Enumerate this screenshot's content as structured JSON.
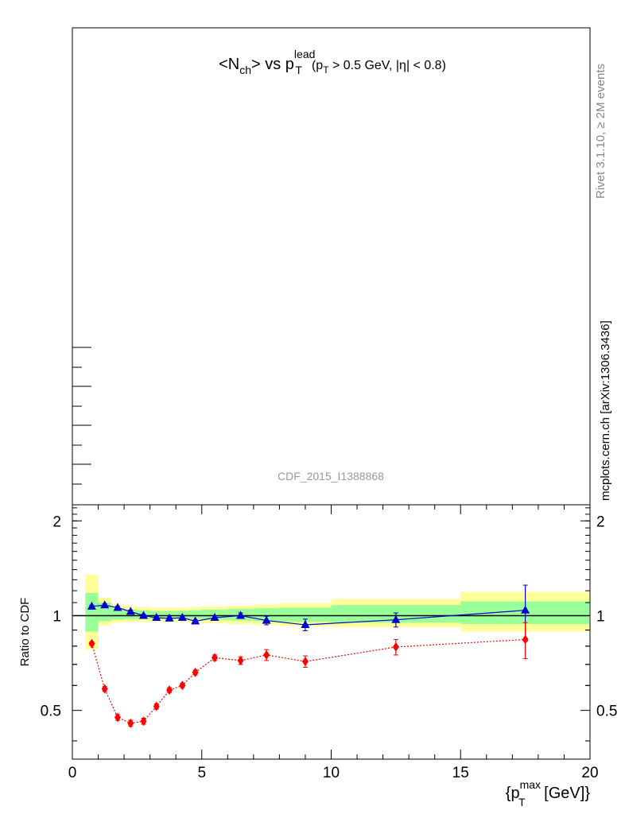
{
  "chart_data": {
    "type": "scatter",
    "title": {
      "text_prefix": "<N",
      "n_sub": "ch",
      "vs": "> vs p",
      "pt_sup": "lead",
      "pt_sub": "T",
      "cut_open": "(p",
      "cut_sub": "T",
      "cut_rest": " > 0.5 GeV, |η| < 0.8)"
    },
    "watermark": "CDF_2015_I1388868",
    "side_labels": {
      "rivet": "Rivet 3.1.10, ≥ 2M events",
      "source": "mcplots.cern.ch [arXiv:1306.3436]"
    },
    "xlabel": {
      "open": "{p",
      "sup": "max",
      "sub": "T",
      "rest": " [GeV]}"
    },
    "ylabel": "Ratio to CDF",
    "xlim": [
      0,
      20
    ],
    "ylim": [
      0.35,
      2.25
    ],
    "yscale": "log",
    "x_ticks": [
      0,
      5,
      10,
      15,
      20
    ],
    "y_ticks": [
      0.5,
      1,
      2
    ],
    "reference_line": 1.0,
    "bands": {
      "edges": [
        0.5,
        1.0,
        1.5,
        2.0,
        2.5,
        3.0,
        3.5,
        4.0,
        4.5,
        5.0,
        6.0,
        7.0,
        8.0,
        10.0,
        15.0,
        20.0
      ],
      "inner": [
        [
          0.89,
          1.18
        ],
        [
          0.96,
          1.1
        ],
        [
          0.97,
          1.06
        ],
        [
          0.975,
          1.045
        ],
        [
          0.975,
          1.04
        ],
        [
          0.975,
          1.035
        ],
        [
          0.975,
          1.035
        ],
        [
          0.975,
          1.035
        ],
        [
          0.975,
          1.04
        ],
        [
          0.97,
          1.045
        ],
        [
          0.965,
          1.05
        ],
        [
          0.96,
          1.055
        ],
        [
          0.955,
          1.06
        ],
        [
          0.95,
          1.08
        ],
        [
          0.94,
          1.11
        ]
      ],
      "outer": [
        [
          0.78,
          1.35
        ],
        [
          0.93,
          1.14
        ],
        [
          0.95,
          1.09
        ],
        [
          0.955,
          1.07
        ],
        [
          0.955,
          1.065
        ],
        [
          0.955,
          1.06
        ],
        [
          0.955,
          1.06
        ],
        [
          0.955,
          1.06
        ],
        [
          0.95,
          1.065
        ],
        [
          0.945,
          1.07
        ],
        [
          0.94,
          1.075
        ],
        [
          0.935,
          1.085
        ],
        [
          0.925,
          1.095
        ],
        [
          0.92,
          1.13
        ],
        [
          0.89,
          1.19
        ]
      ]
    },
    "series": [
      {
        "color": "#0000cc",
        "marker": "triangle",
        "line": "solid",
        "x": [
          0.75,
          1.25,
          1.75,
          2.25,
          2.75,
          3.25,
          3.75,
          4.25,
          4.75,
          5.5,
          6.5,
          7.5,
          9.0,
          12.5,
          17.5
        ],
        "y": [
          1.07,
          1.08,
          1.06,
          1.03,
          1.0,
          0.985,
          0.98,
          0.985,
          0.96,
          0.985,
          1.0,
          0.965,
          0.935,
          0.97,
          1.04
        ],
        "err": [
          0.01,
          0.01,
          0.01,
          0.01,
          0.01,
          0.01,
          0.01,
          0.01,
          0.01,
          0.015,
          0.02,
          0.03,
          0.04,
          0.05,
          0.21
        ]
      },
      {
        "color": "#ff0000",
        "marker": "diamond",
        "line": "dotted",
        "x": [
          0.75,
          1.25,
          1.75,
          2.25,
          2.75,
          3.25,
          3.75,
          4.25,
          4.75,
          5.5,
          6.5,
          7.5,
          9.0,
          12.5,
          17.5
        ],
        "y": [
          0.815,
          0.585,
          0.475,
          0.455,
          0.462,
          0.515,
          0.58,
          0.6,
          0.66,
          0.735,
          0.72,
          0.75,
          0.715,
          0.795,
          0.84
        ],
        "err": [
          0.01,
          0.01,
          0.01,
          0.01,
          0.01,
          0.01,
          0.01,
          0.01,
          0.012,
          0.015,
          0.02,
          0.03,
          0.03,
          0.045,
          0.11
        ]
      }
    ]
  }
}
